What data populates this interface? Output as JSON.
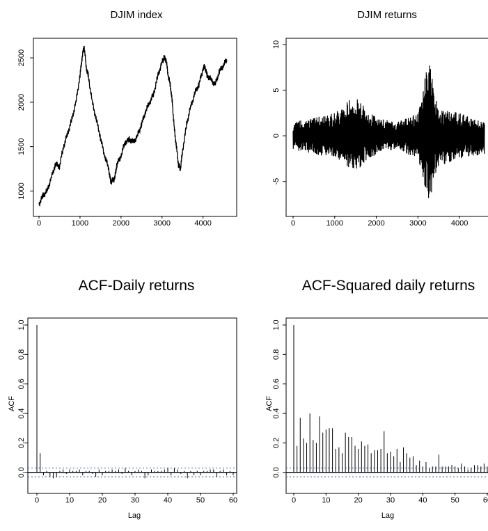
{
  "chart_data": [
    {
      "type": "line",
      "title": "DJIM index",
      "xlabel": "",
      "ylabel": "",
      "xlim": [
        0,
        4600
      ],
      "ylim": [
        800,
        2650
      ],
      "xticks": [
        "0",
        "1000",
        "2000",
        "3000",
        "4000"
      ],
      "yticks": [
        "1000",
        "1500",
        "2000",
        "2500"
      ],
      "series": [
        {
          "x": [
            0,
            100,
            200,
            300,
            400,
            500,
            600,
            700,
            800,
            900,
            1000,
            1050,
            1100,
            1150,
            1200,
            1300,
            1400,
            1500,
            1600,
            1700,
            1750,
            1800,
            1850,
            1900,
            2000,
            2100,
            2200,
            2300,
            2400,
            2500,
            2600,
            2700,
            2800,
            2900,
            3000,
            3050,
            3100,
            3150,
            3200,
            3250,
            3300,
            3350,
            3400,
            3450,
            3500,
            3600,
            3700,
            3800,
            3900,
            4000,
            4050,
            4100,
            4200,
            4300,
            4400,
            4500,
            4580
          ],
          "y": [
            850,
            950,
            1000,
            1150,
            1300,
            1280,
            1500,
            1650,
            1800,
            2000,
            2300,
            2500,
            2640,
            2400,
            2300,
            2000,
            1800,
            1600,
            1400,
            1250,
            1100,
            1120,
            1150,
            1300,
            1400,
            1550,
            1580,
            1550,
            1620,
            1750,
            1900,
            2000,
            2100,
            2300,
            2450,
            2500,
            2480,
            2300,
            2200,
            2000,
            1700,
            1500,
            1300,
            1250,
            1450,
            1750,
            1950,
            2100,
            2200,
            2380,
            2400,
            2300,
            2250,
            2200,
            2350,
            2420,
            2480
          ]
        }
      ]
    },
    {
      "type": "line",
      "title": "DJIM returns",
      "xlabel": "",
      "ylabel": "",
      "xlim": [
        0,
        4600
      ],
      "ylim": [
        -8,
        10
      ],
      "xticks": [
        "0",
        "1000",
        "2000",
        "3000",
        "4000"
      ],
      "yticks": [
        "-5",
        "0",
        "5",
        "10"
      ],
      "series": [
        {
          "x": [
            0,
            500,
            1000,
            1500,
            2000,
            2500,
            3000,
            3300,
            3350,
            3500,
            4000,
            4600
          ],
          "y_max": [
            1.5,
            2.0,
            2.5,
            4.5,
            2.0,
            1.5,
            2.5,
            9.5,
            6.0,
            3.0,
            2.5,
            1.5
          ],
          "y_min": [
            -1.5,
            -2.0,
            -2.5,
            -4.0,
            -2.0,
            -1.5,
            -2.5,
            -8.0,
            -5.0,
            -3.5,
            -2.5,
            -2.0
          ]
        }
      ]
    },
    {
      "type": "bar",
      "title": "ACF-Daily returns",
      "xlabel": "Lag",
      "ylabel": "ACF",
      "xlim": [
        0,
        60
      ],
      "ylim": [
        -0.1,
        1.0
      ],
      "xticks": [
        "0",
        "10",
        "20",
        "30",
        "40",
        "50",
        "60"
      ],
      "yticks": [
        "0.0",
        "0.2",
        "0.4",
        "0.6",
        "0.8",
        "1.0"
      ],
      "confidence_band": 0.03,
      "lags": [
        0,
        1,
        2,
        3,
        4,
        5,
        6,
        7,
        8,
        9,
        10,
        11,
        12,
        13,
        14,
        15,
        16,
        17,
        18,
        19,
        20,
        21,
        22,
        23,
        24,
        25,
        26,
        27,
        28,
        29,
        30,
        31,
        32,
        33,
        34,
        35,
        36,
        37,
        38,
        39,
        40,
        41,
        42,
        43,
        44,
        45,
        46,
        47,
        48,
        49,
        50,
        51,
        52,
        53,
        54,
        55,
        56,
        57,
        58,
        59,
        60
      ],
      "values": [
        1.0,
        0.13,
        -0.02,
        0.01,
        -0.03,
        -0.04,
        -0.03,
        0.01,
        0.02,
        -0.01,
        0.02,
        0.01,
        0.01,
        0.02,
        -0.02,
        0.01,
        0.01,
        -0.01,
        -0.03,
        0.02,
        -0.02,
        0.01,
        0.01,
        0.02,
        0.01,
        0.02,
        -0.01,
        0.03,
        0.01,
        -0.02,
        0.01,
        0.02,
        0.01,
        -0.04,
        -0.02,
        0.02,
        0.01,
        0.01,
        0.01,
        0.02,
        0.03,
        -0.02,
        0.03,
        0.02,
        -0.01,
        0.01,
        -0.04,
        0.01,
        -0.02,
        0.01,
        -0.02,
        0.01,
        0.01,
        0.02,
        0.02,
        -0.03,
        0.01,
        0.02,
        -0.02,
        0.01,
        -0.02
      ]
    },
    {
      "type": "bar",
      "title": "ACF-Squared daily returns",
      "xlabel": "Lag",
      "ylabel": "ACF",
      "xlim": [
        0,
        60
      ],
      "ylim": [
        -0.1,
        1.0
      ],
      "xticks": [
        "0",
        "10",
        "20",
        "30",
        "40",
        "50",
        "60"
      ],
      "yticks": [
        "0.0",
        "0.2",
        "0.4",
        "0.6",
        "0.8",
        "1.0"
      ],
      "confidence_band": 0.03,
      "lags": [
        0,
        1,
        2,
        3,
        4,
        5,
        6,
        7,
        8,
        9,
        10,
        11,
        12,
        13,
        14,
        15,
        16,
        17,
        18,
        19,
        20,
        21,
        22,
        23,
        24,
        25,
        26,
        27,
        28,
        29,
        30,
        31,
        32,
        33,
        34,
        35,
        36,
        37,
        38,
        39,
        40,
        41,
        42,
        43,
        44,
        45,
        46,
        47,
        48,
        49,
        50,
        51,
        52,
        53,
        54,
        55,
        56,
        57,
        58,
        59,
        60
      ],
      "values": [
        1.0,
        0.18,
        0.37,
        0.23,
        0.2,
        0.4,
        0.22,
        0.2,
        0.38,
        0.27,
        0.29,
        0.3,
        0.3,
        0.16,
        0.17,
        0.13,
        0.27,
        0.24,
        0.24,
        0.18,
        0.16,
        0.21,
        0.18,
        0.19,
        0.13,
        0.15,
        0.15,
        0.16,
        0.28,
        0.13,
        0.14,
        0.11,
        0.16,
        0.07,
        0.17,
        0.13,
        0.1,
        0.11,
        0.05,
        0.08,
        0.04,
        0.07,
        0.03,
        0.04,
        0.04,
        0.12,
        0.04,
        0.04,
        0.04,
        0.05,
        0.04,
        0.03,
        0.06,
        0.04,
        0.02,
        0.03,
        0.05,
        0.05,
        0.04,
        0.06,
        0.04
      ]
    }
  ]
}
